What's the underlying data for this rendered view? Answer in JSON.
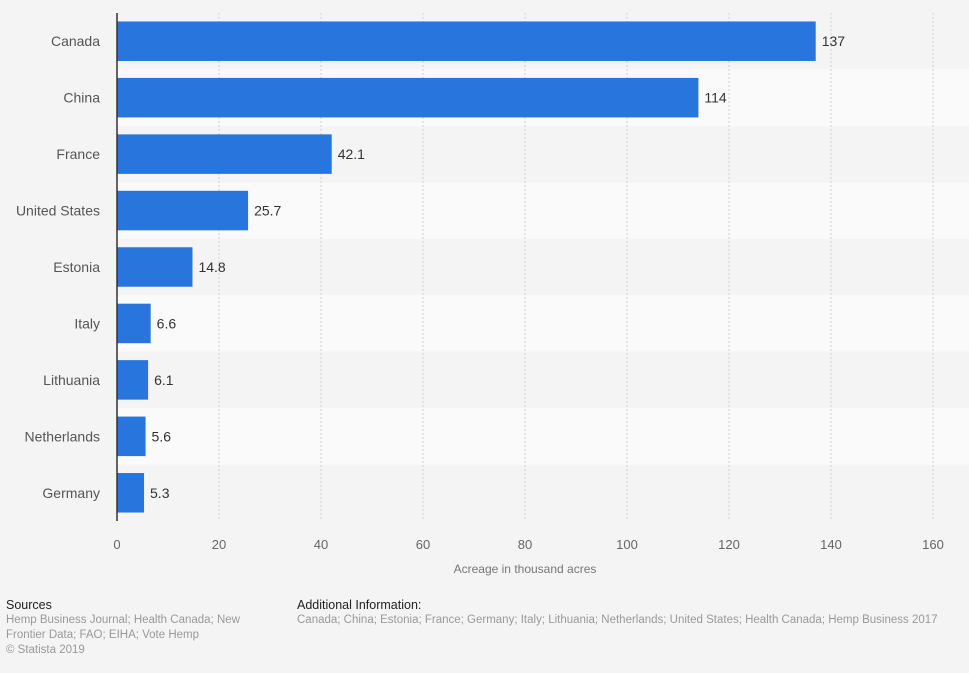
{
  "chart_data": {
    "type": "bar",
    "orientation": "horizontal",
    "title": "",
    "categories": [
      "Canada",
      "China",
      "France",
      "United States",
      "Estonia",
      "Italy",
      "Lithuania",
      "Netherlands",
      "Germany"
    ],
    "values": [
      137,
      114,
      42.1,
      25.7,
      14.8,
      6.6,
      6.1,
      5.6,
      5.3
    ],
    "value_labels": [
      "137",
      "114",
      "42.1",
      "25.7",
      "14.8",
      "6.6",
      "6.1",
      "5.6",
      "5.3"
    ],
    "xlabel": "Acreage in thousand acres",
    "ylabel": "",
    "xlim": [
      0,
      160
    ],
    "xticks": [
      0,
      20,
      40,
      60,
      80,
      100,
      120,
      140,
      160
    ],
    "grid": true,
    "legend": "none",
    "bar_color": "#2876dd"
  },
  "footer": {
    "sources_title": "Sources",
    "sources_text": "Hemp Business Journal; Health Canada; New Frontier Data; FAO; EIHA; Vote Hemp",
    "copyright": "© Statista 2019",
    "info_title": "Additional Information:",
    "info_text": "Canada; China; Estonia; France; Germany; Italy; Lithuania; Netherlands; United States; Health Canada; Hemp Business 2017"
  }
}
